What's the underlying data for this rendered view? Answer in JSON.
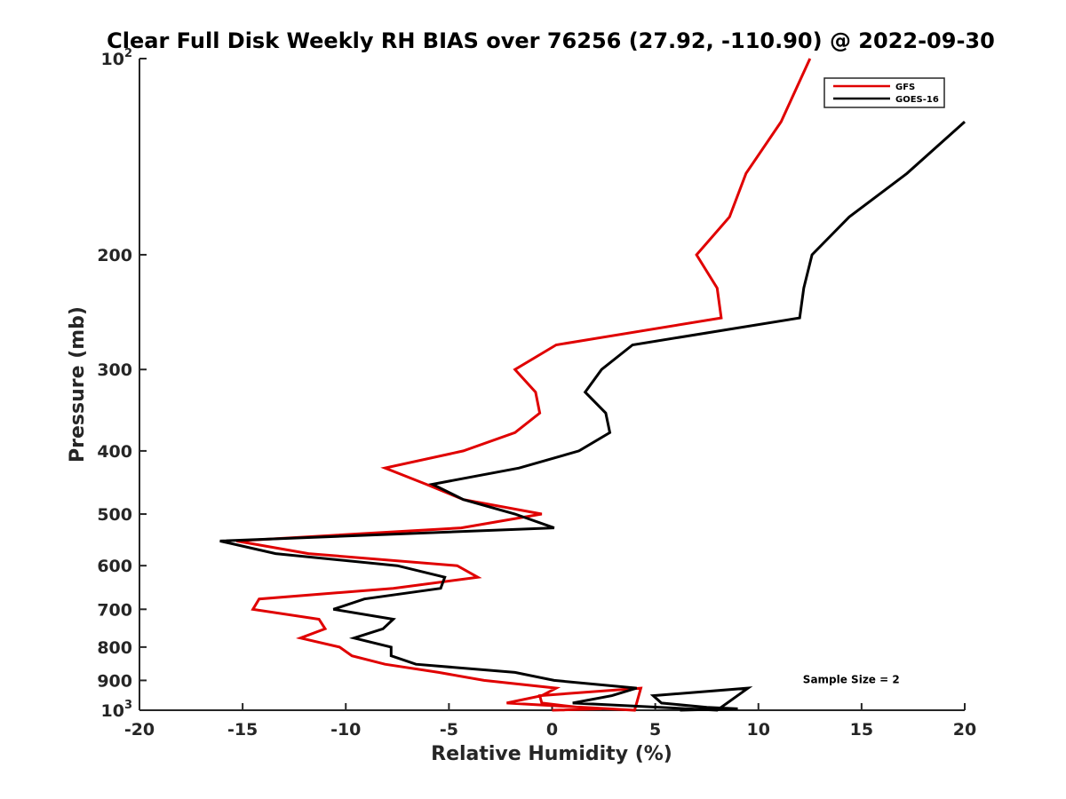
{
  "chart_data": {
    "type": "line",
    "title": "Clear Full Disk Weekly RH BIAS over 76256 (27.92, -110.90) @ 2022-09-30",
    "xlabel": "Relative Humidity (%)",
    "ylabel": "Pressure (mb)",
    "xlim": [
      -20,
      20
    ],
    "ylim": [
      100,
      1000
    ],
    "y_scale": "log",
    "y_reversed": true,
    "grid": false,
    "legend_position": "top-right",
    "x_ticks": [
      -20,
      -15,
      -10,
      -5,
      0,
      5,
      10,
      15,
      20
    ],
    "x_tick_labels": [
      "-20",
      "-15",
      "-10",
      "-5",
      "0",
      "5",
      "10",
      "15",
      "20"
    ],
    "y_ticks": [
      {
        "value": 100,
        "base": "10",
        "exp": "2"
      },
      {
        "value": 200,
        "label": "200"
      },
      {
        "value": 300,
        "label": "300"
      },
      {
        "value": 400,
        "label": "400"
      },
      {
        "value": 500,
        "label": "500"
      },
      {
        "value": 600,
        "label": "600"
      },
      {
        "value": 700,
        "label": "700"
      },
      {
        "value": 800,
        "label": "800"
      },
      {
        "value": 900,
        "label": "900"
      },
      {
        "value": 1000,
        "base": "10",
        "exp": "3"
      }
    ],
    "series": [
      {
        "name": "GFS",
        "color": "#e00000",
        "points": [
          {
            "x": 12.5,
            "p": 100
          },
          {
            "x": 11.1,
            "p": 125
          },
          {
            "x": 9.4,
            "p": 150
          },
          {
            "x": 8.6,
            "p": 175
          },
          {
            "x": 7.0,
            "p": 200
          },
          {
            "x": 8.0,
            "p": 225
          },
          {
            "x": 8.2,
            "p": 250
          },
          {
            "x": 0.2,
            "p": 275
          },
          {
            "x": -1.8,
            "p": 300
          },
          {
            "x": -0.8,
            "p": 325
          },
          {
            "x": -0.6,
            "p": 350
          },
          {
            "x": -1.8,
            "p": 375
          },
          {
            "x": -4.3,
            "p": 400
          },
          {
            "x": -8.1,
            "p": 425
          },
          {
            "x": -6.1,
            "p": 450
          },
          {
            "x": -4.3,
            "p": 475
          },
          {
            "x": -0.5,
            "p": 500
          },
          {
            "x": -4.4,
            "p": 525
          },
          {
            "x": -15.3,
            "p": 550
          },
          {
            "x": -11.8,
            "p": 575
          },
          {
            "x": -4.6,
            "p": 600
          },
          {
            "x": -3.6,
            "p": 625
          },
          {
            "x": -7.7,
            "p": 650
          },
          {
            "x": -14.2,
            "p": 675
          },
          {
            "x": -14.5,
            "p": 700
          },
          {
            "x": -11.3,
            "p": 725
          },
          {
            "x": -11.0,
            "p": 750
          },
          {
            "x": -12.2,
            "p": 775
          },
          {
            "x": -10.3,
            "p": 800
          },
          {
            "x": -9.7,
            "p": 825
          },
          {
            "x": -8.1,
            "p": 850
          },
          {
            "x": -5.5,
            "p": 875
          },
          {
            "x": -3.3,
            "p": 900
          },
          {
            "x": 0.2,
            "p": 925
          },
          {
            "x": -0.5,
            "p": 950
          },
          {
            "x": -2.2,
            "p": 975
          },
          {
            "x": 4.0,
            "p": 1000
          },
          {
            "x": 4.3,
            "p": 925
          },
          {
            "x": -0.6,
            "p": 950
          },
          {
            "x": -0.5,
            "p": 975
          },
          {
            "x": 1.3,
            "p": 990
          },
          {
            "x": 2.4,
            "p": 995
          },
          {
            "x": 0.0,
            "p": 1000
          }
        ]
      },
      {
        "name": "GOES-16",
        "color": "#000000",
        "points": [
          {
            "x": 20.0,
            "p": 125
          },
          {
            "x": 17.2,
            "p": 150
          },
          {
            "x": 14.4,
            "p": 175
          },
          {
            "x": 12.6,
            "p": 200
          },
          {
            "x": 12.2,
            "p": 225
          },
          {
            "x": 12.0,
            "p": 250
          },
          {
            "x": 3.9,
            "p": 275
          },
          {
            "x": 2.4,
            "p": 300
          },
          {
            "x": 1.6,
            "p": 325
          },
          {
            "x": 2.6,
            "p": 350
          },
          {
            "x": 2.8,
            "p": 375
          },
          {
            "x": 1.3,
            "p": 400
          },
          {
            "x": -1.6,
            "p": 425
          },
          {
            "x": -5.8,
            "p": 450
          },
          {
            "x": -4.3,
            "p": 475
          },
          {
            "x": -1.8,
            "p": 500
          },
          {
            "x": 0.1,
            "p": 525
          },
          {
            "x": -16.1,
            "p": 550
          },
          {
            "x": -13.4,
            "p": 575
          },
          {
            "x": -7.5,
            "p": 600
          },
          {
            "x": -5.2,
            "p": 625
          },
          {
            "x": -5.4,
            "p": 650
          },
          {
            "x": -9.1,
            "p": 675
          },
          {
            "x": -10.6,
            "p": 700
          },
          {
            "x": -7.7,
            "p": 725
          },
          {
            "x": -8.2,
            "p": 750
          },
          {
            "x": -9.6,
            "p": 775
          },
          {
            "x": -7.8,
            "p": 800
          },
          {
            "x": -7.8,
            "p": 825
          },
          {
            "x": -6.6,
            "p": 850
          },
          {
            "x": -1.8,
            "p": 875
          },
          {
            "x": 0.1,
            "p": 900
          },
          {
            "x": 4.1,
            "p": 925
          },
          {
            "x": 2.9,
            "p": 950
          },
          {
            "x": 1.0,
            "p": 975
          },
          {
            "x": 8.0,
            "p": 1000
          },
          {
            "x": 9.5,
            "p": 925
          },
          {
            "x": 4.9,
            "p": 950
          },
          {
            "x": 5.3,
            "p": 975
          },
          {
            "x": 7.5,
            "p": 990
          },
          {
            "x": 9.0,
            "p": 995
          },
          {
            "x": 6.2,
            "p": 1000
          }
        ]
      }
    ],
    "annotations": [
      {
        "text": "Sample Size = 2",
        "x": 14.5,
        "p": 895
      }
    ]
  }
}
